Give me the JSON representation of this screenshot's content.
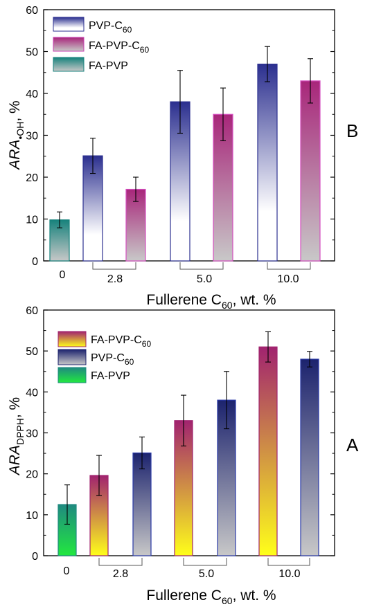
{
  "chart_data": [
    {
      "panel": "B",
      "type": "bar",
      "ylabel": {
        "main": "ARA",
        "sub": "•OH",
        "unit": ", %"
      },
      "xlabel": {
        "main": "Fullerene C",
        "sub": "60",
        "unit": ", wt. %"
      },
      "ylim": [
        0,
        60
      ],
      "yticks": [
        "0",
        "10",
        "20",
        "30",
        "40",
        "50",
        "60"
      ],
      "group_labels": [
        "0",
        "2.8",
        "5.0",
        "10.0"
      ],
      "legend": [
        {
          "main": "PVP-C",
          "sub": "60",
          "series": "pvp"
        },
        {
          "main": "FA-PVP-C",
          "sub": "60",
          "series": "fapvpc"
        },
        {
          "main": "FA-PVP",
          "sub": "",
          "series": "fapvp"
        }
      ],
      "bars": [
        {
          "group": "0",
          "series": "fapvp",
          "value": 9.8,
          "error": 1.9
        },
        {
          "group": "2.8",
          "series": "pvp",
          "value": 25.1,
          "error": 4.2
        },
        {
          "group": "2.8",
          "series": "fapvpc",
          "value": 17.1,
          "error": 2.9
        },
        {
          "group": "5.0",
          "series": "pvp",
          "value": 38.0,
          "error": 7.5
        },
        {
          "group": "5.0",
          "series": "fapvpc",
          "value": 35.0,
          "error": 6.3
        },
        {
          "group": "10.0",
          "series": "pvp",
          "value": 47.0,
          "error": 4.2
        },
        {
          "group": "10.0",
          "series": "fapvpc",
          "value": 43.0,
          "error": 5.3
        }
      ],
      "colors": {
        "pvp": "#2b2f8f",
        "fapvpc": "#a8267a",
        "fapvp": "#1e8a84"
      }
    },
    {
      "panel": "A",
      "type": "bar",
      "ylabel": {
        "main": "ARA",
        "sub": "DPPH",
        "unit": ", %"
      },
      "xlabel": {
        "main": "Fullerene C",
        "sub": "60",
        "unit": ", wt. %"
      },
      "ylim": [
        0,
        60
      ],
      "yticks": [
        "0",
        "10",
        "20",
        "30",
        "40",
        "50",
        "60"
      ],
      "group_labels": [
        "0",
        "2.8",
        "5.0",
        "10.0"
      ],
      "legend": [
        {
          "main": "FA-PVP-C",
          "sub": "60",
          "series": "fapvpc"
        },
        {
          "main": "PVP-C",
          "sub": "60",
          "series": "pvp"
        },
        {
          "main": "FA-PVP",
          "sub": "",
          "series": "fapvp"
        }
      ],
      "bars": [
        {
          "group": "0",
          "series": "fapvp",
          "value": 12.5,
          "error": 4.8
        },
        {
          "group": "2.8",
          "series": "fapvpc",
          "value": 19.6,
          "error": 4.9
        },
        {
          "group": "2.8",
          "series": "pvp",
          "value": 25.1,
          "error": 3.9
        },
        {
          "group": "5.0",
          "series": "fapvpc",
          "value": 33.0,
          "error": 6.2
        },
        {
          "group": "5.0",
          "series": "pvp",
          "value": 38.0,
          "error": 7.0
        },
        {
          "group": "10.0",
          "series": "fapvpc",
          "value": 51.0,
          "error": 3.7
        },
        {
          "group": "10.0",
          "series": "pvp",
          "value": 48.0,
          "error": 1.9
        }
      ],
      "colors": {
        "pvp": "#1c236e",
        "fapvpc": "#a1236f",
        "fapvp": "#22c24a",
        "yellow": "#ffff1a"
      }
    }
  ]
}
